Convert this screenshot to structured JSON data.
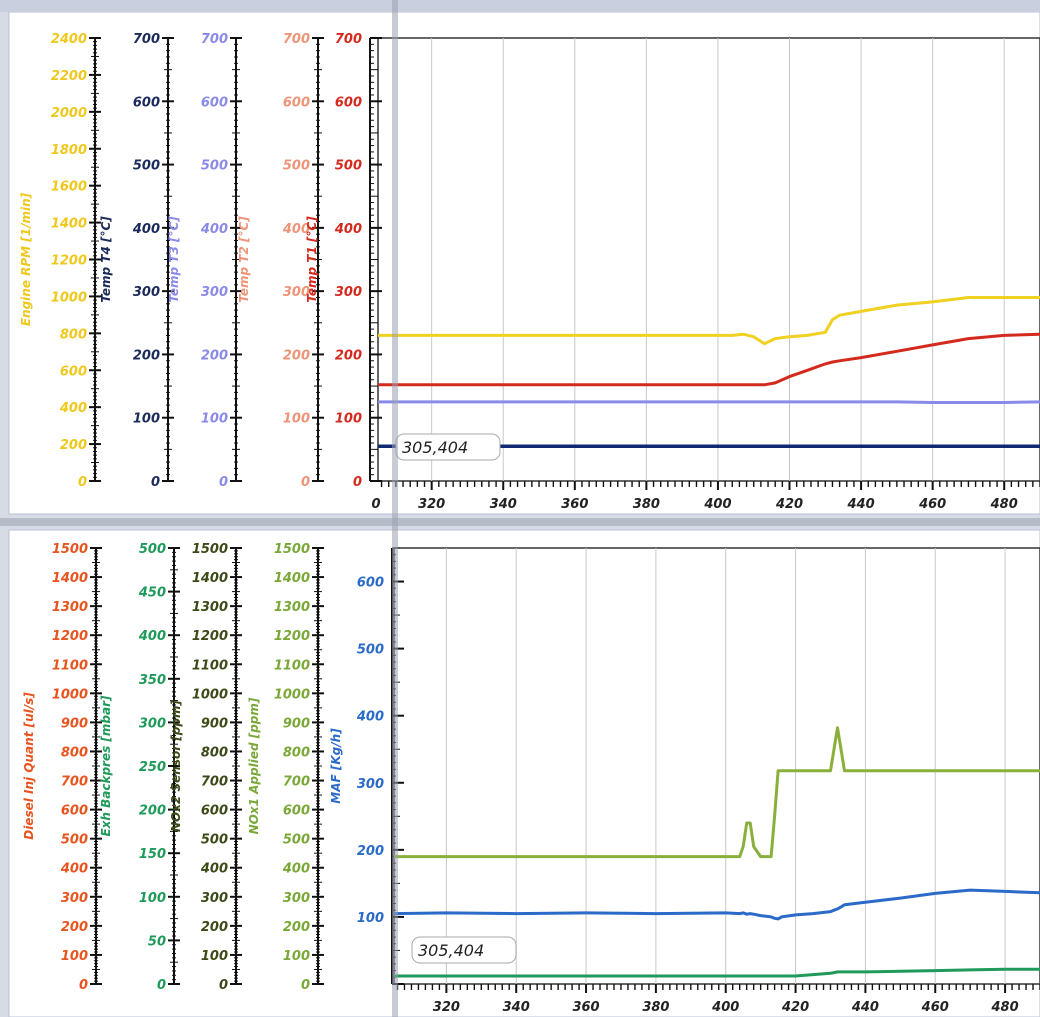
{
  "chart_data": [
    {
      "type": "line",
      "panel": "top",
      "x": [
        305,
        320,
        340,
        360,
        380,
        400,
        404,
        407,
        410,
        413,
        416,
        420,
        425,
        430,
        432,
        434,
        440,
        450,
        460,
        470,
        480,
        490
      ],
      "x_ticks": [
        "0",
        "320",
        "340",
        "360",
        "380",
        "400",
        "420",
        "440",
        "460",
        "480"
      ],
      "xlim": [
        305,
        490
      ],
      "readout": "305,404",
      "axes": [
        {
          "id": "rpm",
          "label": "Engine RPM [1/min]",
          "color": "#f0c81c",
          "ylim": [
            0,
            2400
          ],
          "step": 200,
          "ticks": [
            "0",
            "200",
            "400",
            "600",
            "800",
            "1000",
            "1200",
            "1400",
            "1600",
            "1800",
            "2000",
            "2200",
            "2400"
          ]
        },
        {
          "id": "t4",
          "label": "Temp T4 [°C]",
          "color": "#1b2a5a",
          "ylim": [
            0,
            700
          ],
          "step": 100,
          "ticks": [
            "0",
            "100",
            "200",
            "300",
            "400",
            "500",
            "600",
            "700"
          ]
        },
        {
          "id": "t3",
          "label": "Temp T3 [°C]",
          "color": "#8a8ae8",
          "ylim": [
            0,
            700
          ],
          "step": 100,
          "ticks": [
            "0",
            "100",
            "200",
            "300",
            "400",
            "500",
            "600",
            "700"
          ]
        },
        {
          "id": "t2",
          "label": "Temp T2 [°C]",
          "color": "#ee9478",
          "ylim": [
            0,
            700
          ],
          "step": 100,
          "ticks": [
            "0",
            "100",
            "200",
            "300",
            "400",
            "500",
            "600",
            "700"
          ]
        },
        {
          "id": "t1",
          "label": "Temp T1 [°C]",
          "color": "#d42a1e",
          "ylim": [
            0,
            700
          ],
          "step": 100,
          "ticks": [
            "0",
            "100",
            "200",
            "300",
            "400",
            "500",
            "600",
            "700"
          ]
        }
      ],
      "series": [
        {
          "axis": "t1",
          "color": "#f0d020",
          "values": [
            230,
            230,
            230,
            230,
            230,
            230,
            230,
            232,
            228,
            217,
            225,
            228,
            230,
            235,
            255,
            262,
            268,
            278,
            283,
            290,
            290,
            290
          ]
        },
        {
          "axis": "t1",
          "color": "#d42a1e",
          "values": [
            152,
            152,
            152,
            152,
            152,
            152,
            152,
            152,
            152,
            152,
            155,
            165,
            175,
            185,
            188,
            190,
            195,
            205,
            215,
            225,
            230,
            232
          ]
        },
        {
          "axis": "t1",
          "color": "#8a8ae8",
          "values": [
            125,
            125,
            125,
            125,
            125,
            125,
            125,
            125,
            125,
            125,
            125,
            125,
            125,
            125,
            125,
            125,
            125,
            125,
            124,
            124,
            124,
            125
          ]
        },
        {
          "axis": "t1",
          "color": "#102a72",
          "values": [
            55,
            55,
            55,
            55,
            55,
            55,
            55,
            55,
            55,
            55,
            55,
            55,
            55,
            55,
            55,
            55,
            55,
            55,
            55,
            55,
            55,
            55
          ]
        }
      ]
    },
    {
      "type": "line",
      "panel": "bottom",
      "x": [
        305,
        320,
        340,
        360,
        380,
        400,
        404,
        405,
        406,
        407,
        408,
        410,
        413,
        414,
        415,
        416,
        420,
        425,
        430,
        431,
        432,
        433,
        434,
        440,
        450,
        460,
        470,
        480,
        490
      ],
      "x_ticks": [
        "320",
        "340",
        "360",
        "380",
        "400",
        "420",
        "440",
        "460",
        "480"
      ],
      "xlim": [
        305,
        490
      ],
      "readout": "305,404",
      "axes": [
        {
          "id": "diq",
          "label": "Diesel Inj Quant [ul/s]",
          "color": "#e8541e",
          "ylim": [
            0,
            1500
          ],
          "step": 100,
          "ticks": [
            "0",
            "100",
            "200",
            "300",
            "400",
            "500",
            "600",
            "700",
            "800",
            "900",
            "1000",
            "1100",
            "1200",
            "1300",
            "1400",
            "1500"
          ]
        },
        {
          "id": "exh",
          "label": "Exh Backpres [mbar]",
          "color": "#1f9a5a",
          "ylim": [
            0,
            500
          ],
          "step": 50,
          "ticks": [
            "0",
            "50",
            "100",
            "150",
            "200",
            "250",
            "300",
            "350",
            "400",
            "450",
            "500"
          ]
        },
        {
          "id": "nox2",
          "label": "NOx2 Sensor [ppm]",
          "color": "#3c4a18",
          "ylim": [
            0,
            1500
          ],
          "step": 100,
          "ticks": [
            "0",
            "100",
            "200",
            "300",
            "400",
            "500",
            "600",
            "700",
            "800",
            "900",
            "1000",
            "1100",
            "1200",
            "1300",
            "1400",
            "1500"
          ]
        },
        {
          "id": "nox1",
          "label": "NOx1 Applied [ppm]",
          "color": "#7aa838",
          "ylim": [
            0,
            1500
          ],
          "step": 100,
          "ticks": [
            "0",
            "100",
            "200",
            "300",
            "400",
            "500",
            "600",
            "700",
            "800",
            "900",
            "1000",
            "1100",
            "1200",
            "1300",
            "1400",
            "1500"
          ]
        },
        {
          "id": "maf",
          "label": "MAF [Kg/h]",
          "color": "#2a6ac8",
          "ylim": [
            0,
            650
          ],
          "step": 100,
          "ticks": [
            "100",
            "200",
            "300",
            "400",
            "500",
            "600"
          ]
        }
      ],
      "series": [
        {
          "axis": "maf",
          "color": "#8ab03c",
          "values": [
            190,
            190,
            190,
            190,
            190,
            190,
            190,
            205,
            240,
            240,
            205,
            190,
            190,
            250,
            318,
            318,
            318,
            318,
            318,
            350,
            382,
            350,
            318,
            318,
            318,
            318,
            318,
            318,
            318
          ]
        },
        {
          "axis": "maf",
          "color": "#2a6ac8",
          "values": [
            105,
            106,
            105,
            106,
            105,
            106,
            105,
            106,
            104,
            105,
            104,
            102,
            100,
            98,
            97,
            100,
            103,
            105,
            108,
            110,
            112,
            115,
            118,
            122,
            128,
            135,
            140,
            138,
            136
          ]
        },
        {
          "axis": "maf",
          "color": "#1f9a5a",
          "values": [
            12,
            12,
            12,
            12,
            12,
            12,
            12,
            12,
            12,
            12,
            12,
            12,
            12,
            12,
            12,
            12,
            12,
            14,
            16,
            17,
            18,
            18,
            18,
            18,
            19,
            20,
            21,
            22,
            22
          ]
        }
      ]
    }
  ]
}
